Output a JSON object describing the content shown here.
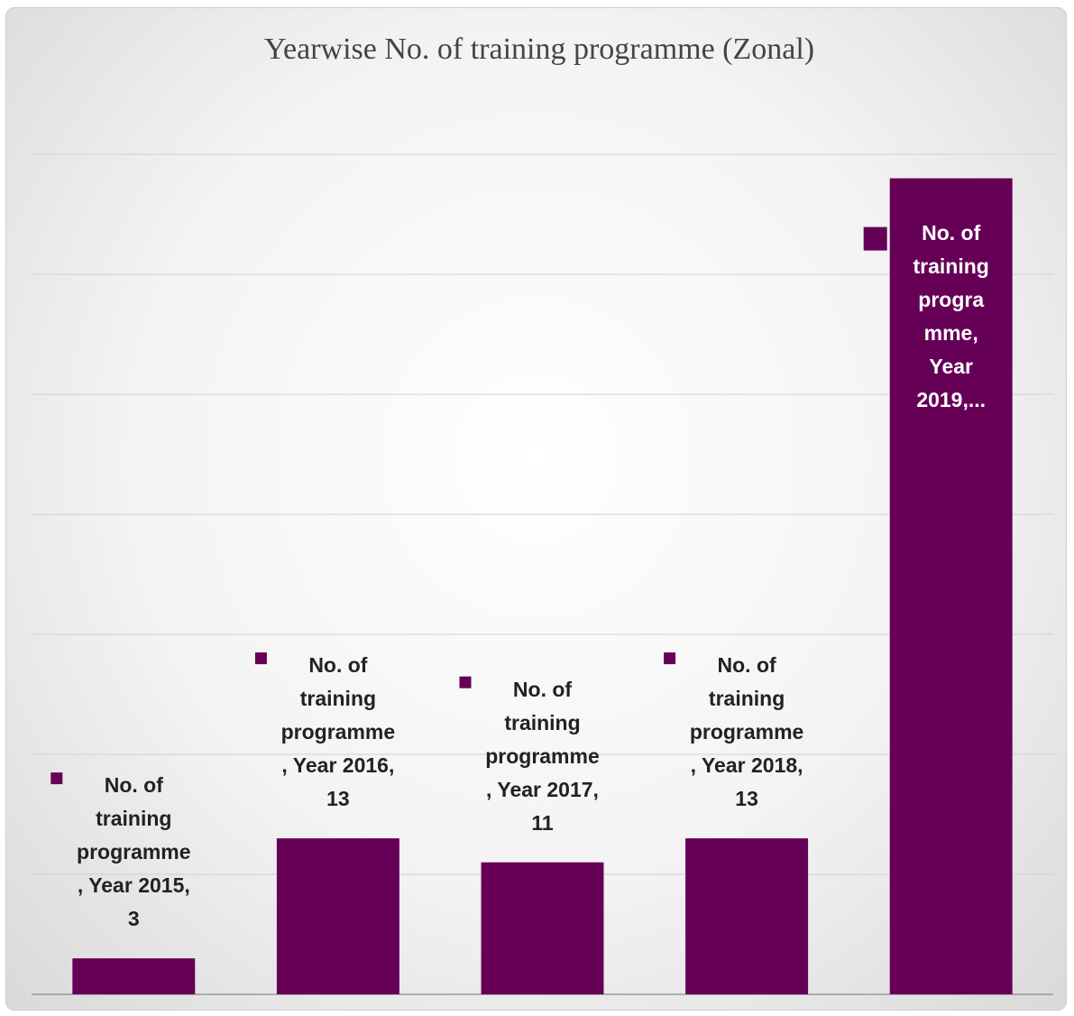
{
  "chart_data": {
    "type": "bar",
    "title": "Yearwise No. of training programme (Zonal)",
    "categories": [
      "2015",
      "2016",
      "2017",
      "2018",
      "2019"
    ],
    "values": [
      3,
      13,
      11,
      13,
      68
    ],
    "value_labels": [
      "No. of training programme, Year 2015, 3",
      "No. of training programme, Year 2016, 13",
      "No. of training programme, Year 2017, 11",
      "No. of training programme, Year 2018, 13",
      "No. of training programme, Year 2019,..."
    ],
    "color": "#660057",
    "ylim": [
      0,
      70
    ],
    "yticks": [
      0,
      10,
      20,
      30,
      40,
      50,
      60,
      70
    ],
    "grid": true
  }
}
